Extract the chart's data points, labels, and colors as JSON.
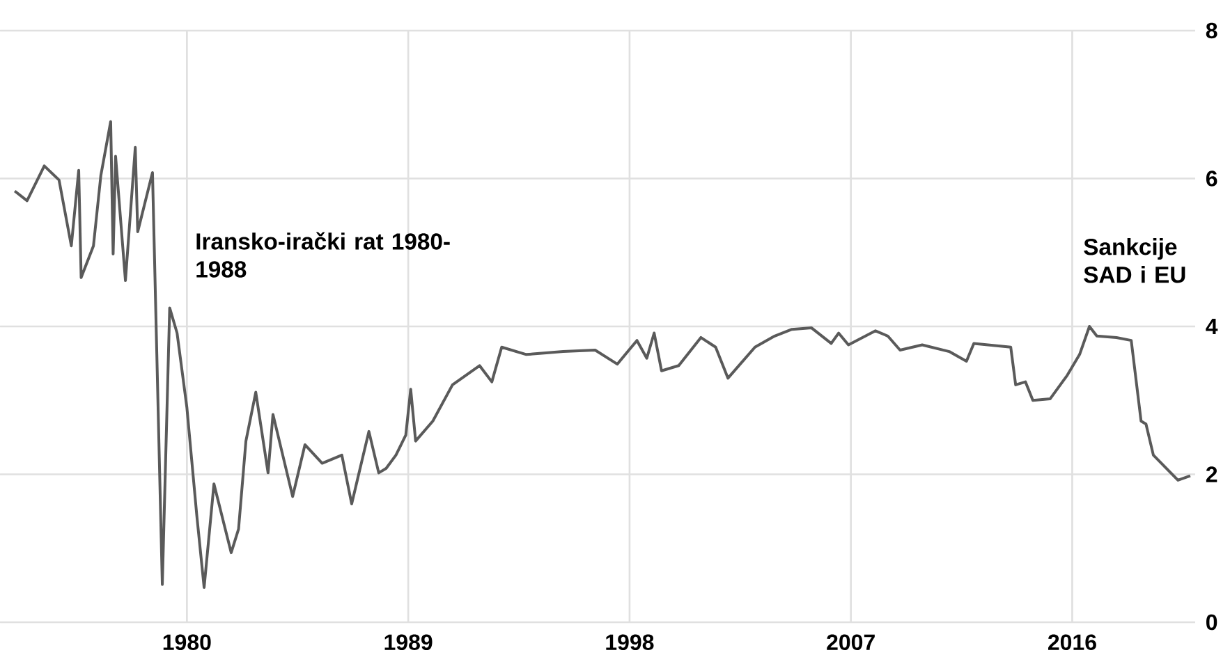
{
  "chart_data": {
    "type": "line",
    "color": "#5a5a5a",
    "grid": true,
    "annotations": [
      "Iransko-irački rat 1980-1988",
      "Sankcije SAD i EU"
    ],
    "x": [
      1973.0,
      1973.5,
      1974.2,
      1974.8,
      1975.3,
      1975.6,
      1975.7,
      1976.2,
      1976.5,
      1976.9,
      1977.0,
      1977.1,
      1977.5,
      1977.9,
      1978.0,
      1978.6,
      1979.0,
      1979.3,
      1979.6,
      1980.0,
      1980.4,
      1980.7,
      1981.1,
      1981.8,
      1982.1,
      1982.4,
      1982.8,
      1983.3,
      1983.5,
      1984.3,
      1984.8,
      1985.5,
      1986.3,
      1986.7,
      1987.4,
      1987.8,
      1988.1,
      1988.5,
      1988.9,
      1989.1,
      1989.3,
      1990.0,
      1990.8,
      1991.9,
      1992.4,
      1992.8,
      1993.8,
      1995.3,
      1996.6,
      1997.5,
      1998.3,
      1998.7,
      1999.0,
      1999.3,
      2000.0,
      2000.9,
      2001.5,
      2002.0,
      2003.1,
      2003.9,
      2004.6,
      2005.4,
      2006.2,
      2006.5,
      2006.9,
      2008.0,
      2008.5,
      2009.0,
      2009.9,
      2011.0,
      2011.7,
      2012.0,
      2013.5,
      2013.7,
      2014.1,
      2014.4,
      2015.1,
      2015.8,
      2016.3,
      2016.7,
      2017.0,
      2017.8,
      2018.4,
      2018.8,
      2019.0,
      2019.3,
      2020.3,
      2020.8
    ],
    "values": [
      5.83,
      5.7,
      6.17,
      5.98,
      5.09,
      6.11,
      4.66,
      5.09,
      6.04,
      6.77,
      4.98,
      6.3,
      4.62,
      6.42,
      5.28,
      6.08,
      0.51,
      4.25,
      3.91,
      2.9,
      1.45,
      0.47,
      1.87,
      0.94,
      1.26,
      2.45,
      3.11,
      2.02,
      2.81,
      1.7,
      2.4,
      2.15,
      2.26,
      1.6,
      2.58,
      2.02,
      2.08,
      2.26,
      2.53,
      3.15,
      2.45,
      2.72,
      3.21,
      3.47,
      3.25,
      3.72,
      3.62,
      3.66,
      3.68,
      3.49,
      3.81,
      3.57,
      3.91,
      3.4,
      3.47,
      3.85,
      3.72,
      3.3,
      3.72,
      3.87,
      3.96,
      3.98,
      3.77,
      3.91,
      3.75,
      3.94,
      3.87,
      3.68,
      3.75,
      3.66,
      3.53,
      3.77,
      3.72,
      3.21,
      3.25,
      3.0,
      3.02,
      3.34,
      3.62,
      4.0,
      3.87,
      3.85,
      3.81,
      2.72,
      2.68,
      2.26,
      1.92,
      1.98
    ],
    "xlim": [
      1972.4,
      2021.0
    ],
    "ylim": [
      0,
      8
    ],
    "xticks": [
      1980,
      1989,
      1998,
      2007,
      2016
    ],
    "yticks": [
      0,
      2,
      4,
      6,
      8
    ]
  }
}
